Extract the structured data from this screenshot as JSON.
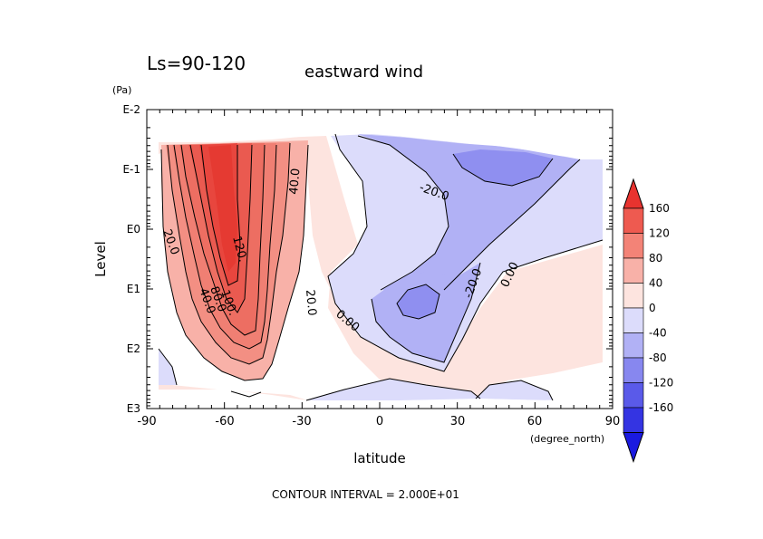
{
  "chart_data": {
    "type": "heatmap",
    "title": "eastward wind",
    "season_label": "Ls=90-120",
    "xlabel": "latitude",
    "x_unit": "(degree_north)",
    "ylabel": "Level",
    "y_unit": "(Pa)",
    "xlim": [
      -90,
      90
    ],
    "ylim_log10": [
      3,
      -2
    ],
    "y_scale": "log",
    "x_ticks": [
      "-90",
      "-60",
      "-30",
      "0",
      "30",
      "60",
      "90"
    ],
    "y_ticks": [
      "E-2",
      "E-1",
      "E0",
      "E1",
      "E2",
      "E3"
    ],
    "footer": "CONTOUR INTERVAL = 2.000E+01",
    "contour_interval": 20,
    "contour_labels": [
      "40.0",
      "-20.0",
      "20.0",
      "120.",
      "-20.0",
      "0.00",
      "20.0",
      "40.0",
      "80.0",
      "100.",
      "0.00"
    ],
    "colorbar": {
      "levels": [
        "160",
        "120",
        "80",
        "40",
        "0",
        "-40",
        "-80",
        "-120",
        "-160"
      ],
      "colors": [
        "#e8332f",
        "#ee5a50",
        "#f38377",
        "#f8b1a8",
        "#fde4df",
        "#dcdcfb",
        "#b1b1f5",
        "#8787ef",
        "#5a5ae9",
        "#3434e2",
        "#1a1ae0"
      ]
    },
    "features": [
      {
        "name": "southern polar westerly jet",
        "lat": -55,
        "level_pa": 3,
        "max_value": 140
      },
      {
        "name": "northern easterly minimum",
        "lat": 45,
        "level_pa": 0.1,
        "value": -40
      },
      {
        "name": "low-latitude easterly core",
        "lat": 15,
        "level_pa": 20,
        "value": -40
      },
      {
        "name": "near-surface easterly",
        "lat": 50,
        "level_pa": 700,
        "value": -20
      }
    ]
  }
}
